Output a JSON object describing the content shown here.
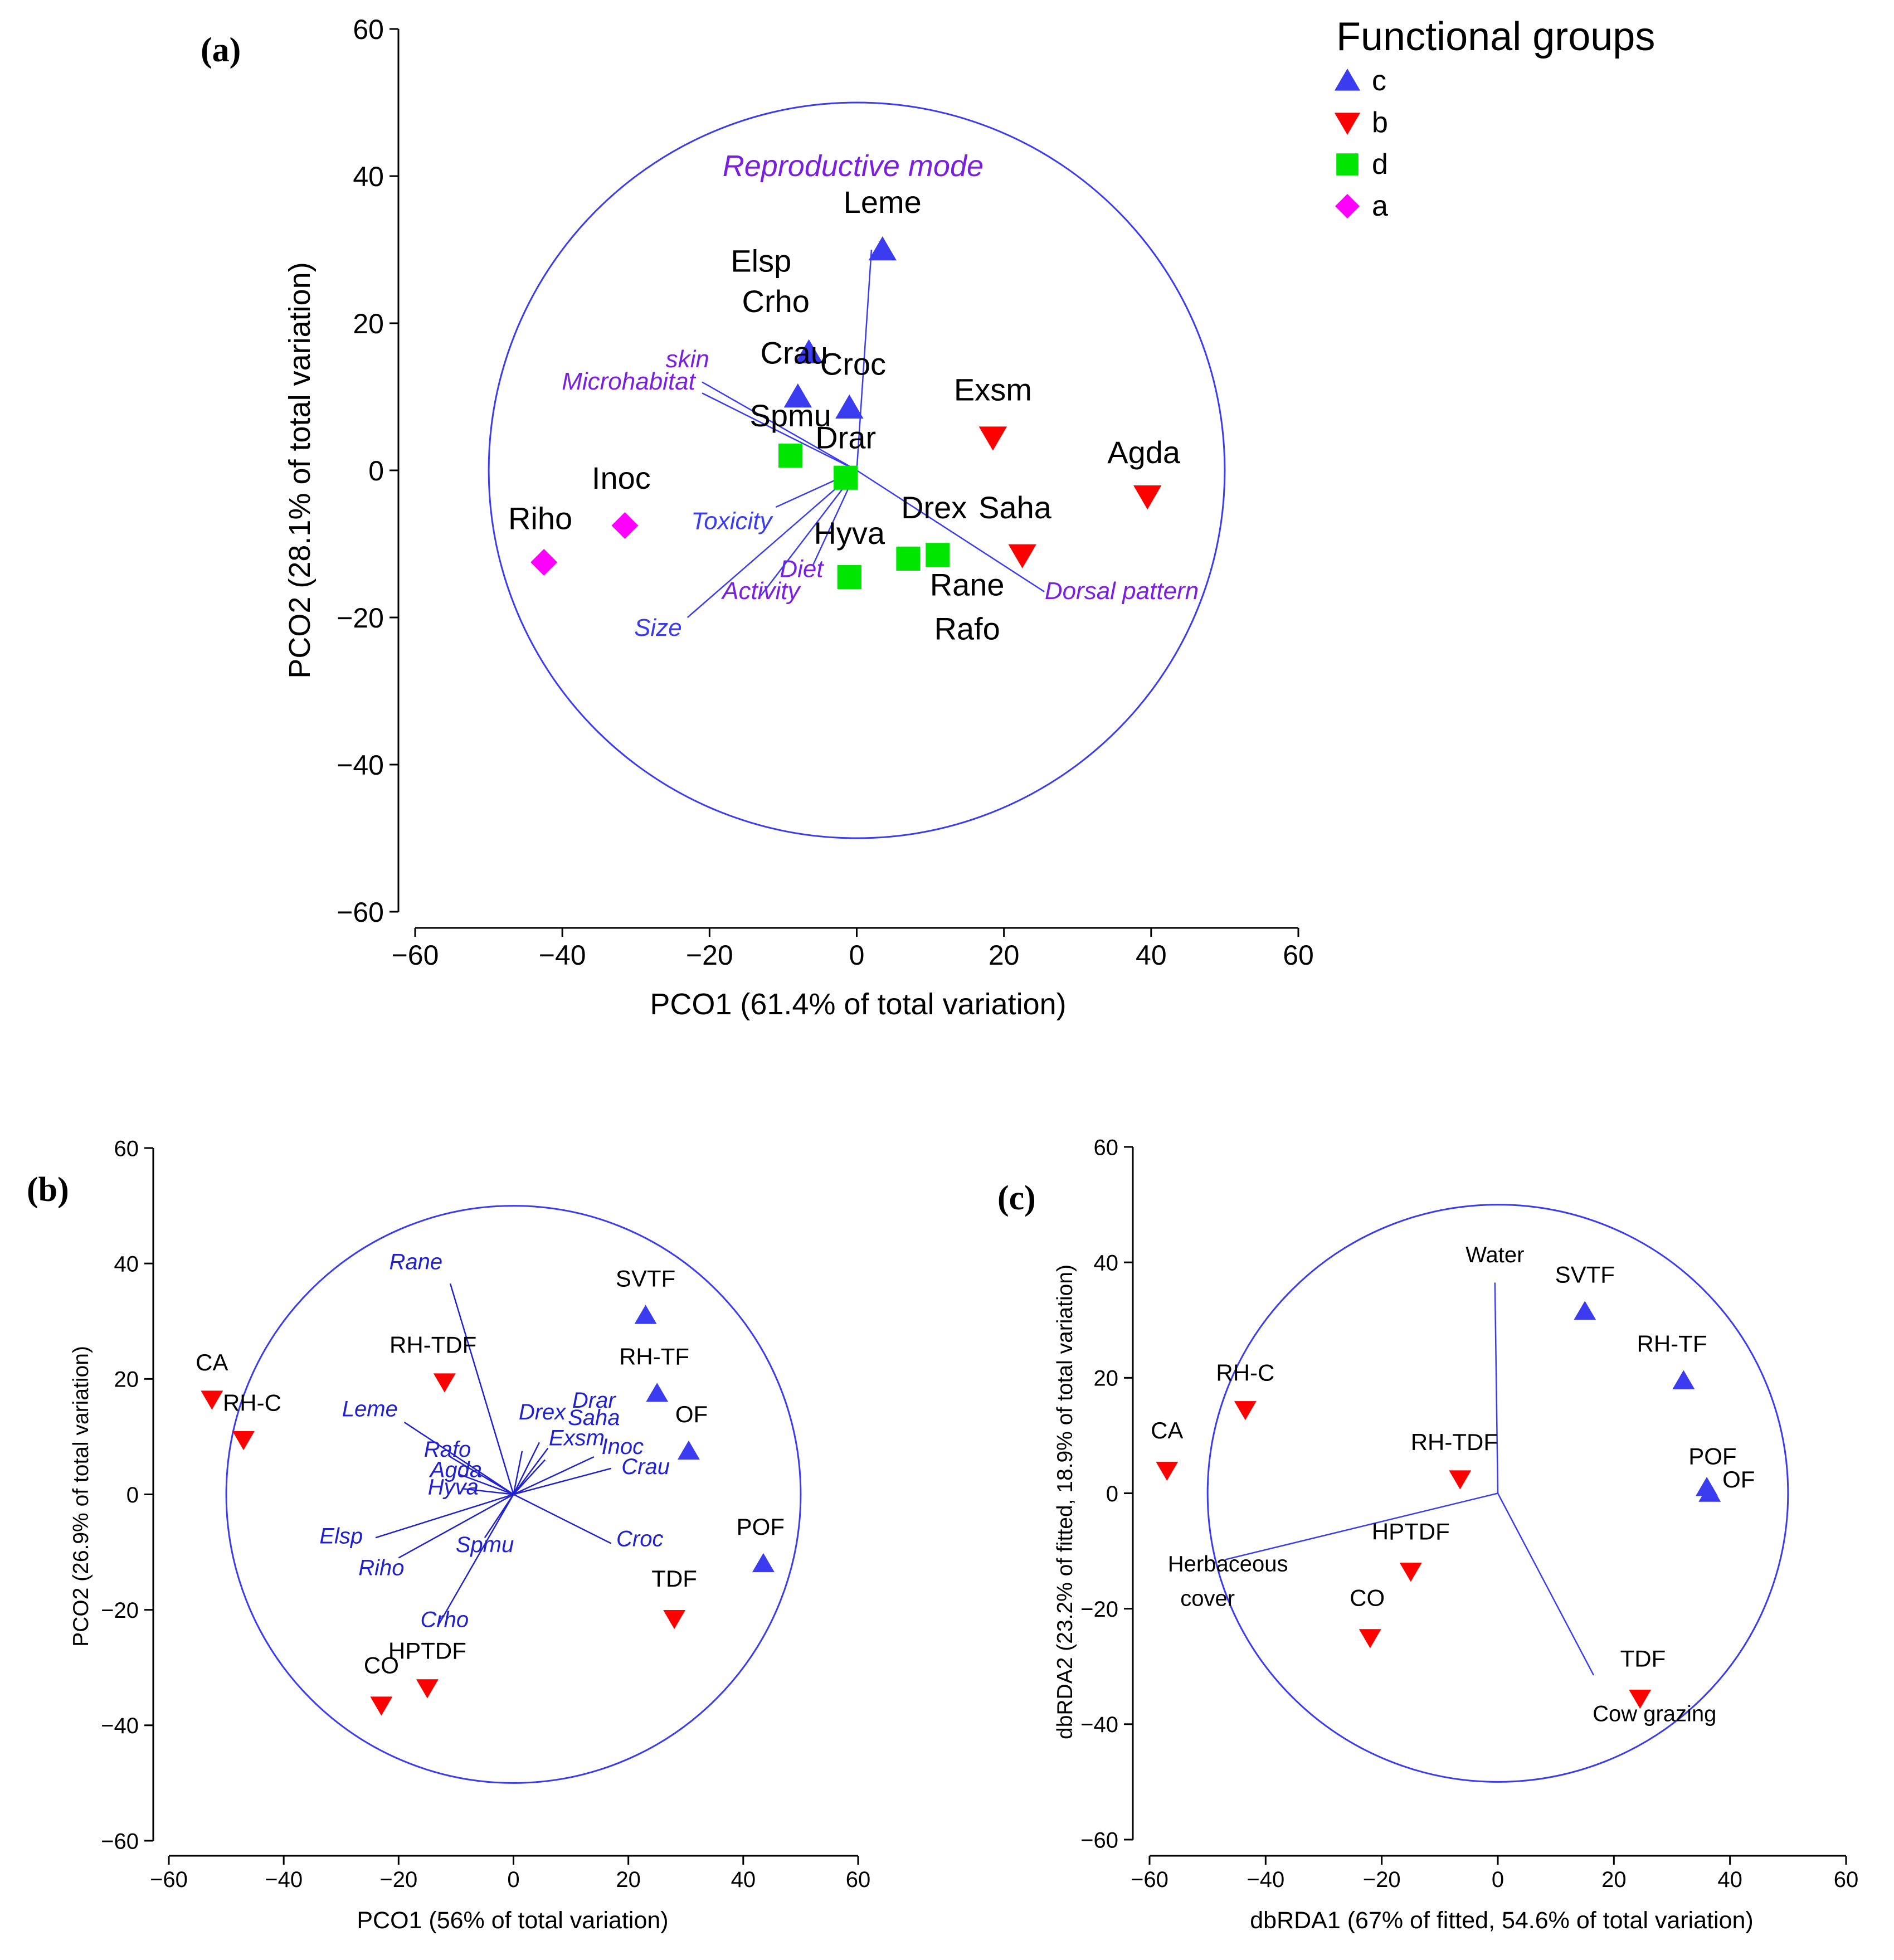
{
  "legend": {
    "title": "Functional groups",
    "items": [
      {
        "label": "c",
        "shape": "triangle-up",
        "color": "#3b3bf0"
      },
      {
        "label": "b",
        "shape": "triangle-down",
        "color": "#ff0000"
      },
      {
        "label": "d",
        "shape": "square",
        "color": "#00e600"
      },
      {
        "label": "a",
        "shape": "diamond",
        "color": "#ff00ff"
      }
    ]
  },
  "chart_data": [
    {
      "panel": "(a)",
      "type": "scatter",
      "xlabel": "PCO1 (61.4% of total variation)",
      "ylabel": "PCO2 (28.1% of total variation)",
      "xlim": [
        -60,
        60
      ],
      "ylim": [
        -60,
        60
      ],
      "xticks": [
        -60,
        -40,
        -20,
        0,
        20,
        40,
        60
      ],
      "yticks": [
        -60,
        -40,
        -20,
        0,
        20,
        40,
        60
      ],
      "tick_labels_x": [
        "−60",
        "−40",
        "−20",
        "0",
        "20",
        "40",
        "60"
      ],
      "tick_labels_y": [
        "−60",
        "−40",
        "−20",
        "0",
        "20",
        "40",
        "60"
      ],
      "circle_radius": 50,
      "points": [
        {
          "label": "Leme",
          "x": 3.5,
          "y": 30,
          "group": "c"
        },
        {
          "label": "Crau",
          "x": -8,
          "y": 10,
          "group": "c"
        },
        {
          "label": "Croc",
          "x": -1,
          "y": 8.5,
          "group": "c"
        },
        {
          "label": "Elsp",
          "x": -6.5,
          "y": 16,
          "group": "c"
        },
        {
          "label": "Exsm",
          "x": 18.5,
          "y": 4.5,
          "group": "b"
        },
        {
          "label": "Agda",
          "x": 39.5,
          "y": -3.5,
          "group": "b"
        },
        {
          "label": "Saha",
          "x": 22.5,
          "y": -11.5,
          "group": "b"
        },
        {
          "label": "Spmu",
          "x": -9,
          "y": 2,
          "group": "d"
        },
        {
          "label": "Drar",
          "x": -1.5,
          "y": -1,
          "group": "d"
        },
        {
          "label": "Hyva",
          "x": -1,
          "y": -14.5,
          "group": "d"
        },
        {
          "label": "Rane",
          "x": 7,
          "y": -12,
          "group": "d"
        },
        {
          "label": "Drex",
          "x": 11,
          "y": -11.5,
          "group": "d"
        },
        {
          "label": "Inoc",
          "x": -31.5,
          "y": -7.5,
          "group": "a"
        },
        {
          "label": "Riho",
          "x": -42.5,
          "y": -12.5,
          "group": "a"
        }
      ],
      "point_labels": [
        {
          "text": "Leme",
          "x": 3.5,
          "y": 35
        },
        {
          "text": "Elsp",
          "x": -13,
          "y": 27
        },
        {
          "text": "Crho",
          "x": -11,
          "y": 21.5
        },
        {
          "text": "Crau",
          "x": -8.5,
          "y": 14.5
        },
        {
          "text": "Croc",
          "x": -0.5,
          "y": 13
        },
        {
          "text": "Exsm",
          "x": 18.5,
          "y": 9.5
        },
        {
          "text": "Spmu",
          "x": -9,
          "y": 6
        },
        {
          "text": "Drar",
          "x": -1.5,
          "y": 3
        },
        {
          "text": "Agda",
          "x": 39,
          "y": 1
        },
        {
          "text": "Inoc",
          "x": -32,
          "y": -2.5
        },
        {
          "text": "Riho",
          "x": -43,
          "y": -8
        },
        {
          "text": "Drex",
          "x": 10.5,
          "y": -6.5
        },
        {
          "text": "Saha",
          "x": 21.5,
          "y": -6.5
        },
        {
          "text": "Hyva",
          "x": -1,
          "y": -10
        },
        {
          "text": "Rane",
          "x": 15,
          "y": -17
        },
        {
          "text": "Rafo",
          "x": 15,
          "y": -23
        }
      ],
      "vectors": [
        {
          "label": "Reproductive mode",
          "x": 2,
          "y": 30,
          "lx": -0.5,
          "ly": 40,
          "color": "#7a1fe0"
        },
        {
          "label": "skin",
          "x": -21,
          "y": 12,
          "lx": -23,
          "ly": 14,
          "color": "#7a1fe0"
        },
        {
          "label": "Microhabitat",
          "x": -21,
          "y": 10.5,
          "lx": -31,
          "ly": 11,
          "color": "#7a1fe0"
        },
        {
          "label": "Toxicity",
          "x": -11,
          "y": -5,
          "lx": -17,
          "ly": -8,
          "color": "#3b3bf0"
        },
        {
          "label": "Diet",
          "x": -6,
          "y": -13,
          "lx": -7.5,
          "ly": -14.5,
          "color": "#7a1fe0"
        },
        {
          "label": "Activity",
          "x": -13,
          "y": -17,
          "lx": -13,
          "ly": -17.5,
          "color": "#7a1fe0"
        },
        {
          "label": "Size",
          "x": -23,
          "y": -20,
          "lx": -27,
          "ly": -22.5,
          "color": "#3b3bf0"
        },
        {
          "label": "Dorsal pattern",
          "x": 25.5,
          "y": -16.5,
          "lx": 36,
          "ly": -17.5,
          "color": "#7a1fe0"
        }
      ]
    },
    {
      "panel": "(b)",
      "type": "scatter",
      "xlabel": "PCO1 (56% of total variation)",
      "ylabel": "PCO2 (26.9% of total variation)",
      "xlim": [
        -60,
        60
      ],
      "ylim": [
        -60,
        60
      ],
      "xticks": [
        -60,
        -40,
        -20,
        0,
        20,
        40,
        60
      ],
      "yticks": [
        -60,
        -40,
        -20,
        0,
        20,
        40,
        60
      ],
      "tick_labels_x": [
        "−60",
        "−40",
        "−20",
        "0",
        "20",
        "40",
        "60"
      ],
      "tick_labels_y": [
        "−60",
        "−40",
        "−20",
        "0",
        "20",
        "40",
        "60"
      ],
      "circle_radius": 50,
      "points": [
        {
          "label": "SVTF",
          "x": 23,
          "y": 31,
          "group": "c"
        },
        {
          "label": "RH-TF",
          "x": 25,
          "y": 17.5,
          "group": "c"
        },
        {
          "label": "OF",
          "x": 30.5,
          "y": 7.5,
          "group": "c"
        },
        {
          "label": "POF",
          "x": 43.5,
          "y": -12,
          "group": "c"
        },
        {
          "label": "CA",
          "x": -52.5,
          "y": 16.5,
          "group": "b"
        },
        {
          "label": "RH-C",
          "x": -47,
          "y": 9.5,
          "group": "b"
        },
        {
          "label": "RH-TDF",
          "x": -12,
          "y": 19.5,
          "group": "b"
        },
        {
          "label": "TDF",
          "x": 28,
          "y": -21.5,
          "group": "b"
        },
        {
          "label": "CO",
          "x": -23,
          "y": -36.5,
          "group": "b"
        },
        {
          "label": "HPTDF",
          "x": -15,
          "y": -33.5,
          "group": "b"
        }
      ],
      "point_labels": [
        {
          "text": "SVTF",
          "x": 23,
          "y": 36
        },
        {
          "text": "RH-TF",
          "x": 24.5,
          "y": 22.5
        },
        {
          "text": "OF",
          "x": 31,
          "y": 12.5
        },
        {
          "text": "POF",
          "x": 43,
          "y": -7
        },
        {
          "text": "CA",
          "x": -52.5,
          "y": 21.5
        },
        {
          "text": "RH-C",
          "x": -45.5,
          "y": 14.5
        },
        {
          "text": "RH-TDF",
          "x": -14,
          "y": 24.5
        },
        {
          "text": "TDF",
          "x": 28,
          "y": -16
        },
        {
          "text": "CO",
          "x": -23,
          "y": -31
        },
        {
          "text": "HPTDF",
          "x": -15,
          "y": -28.5
        }
      ],
      "vectors": [
        {
          "label": "Rane",
          "x": -11,
          "y": 36.5,
          "lx": -17,
          "ly": 39,
          "color": "#2020d0"
        },
        {
          "label": "Leme",
          "x": -19,
          "y": 12.5,
          "lx": -25,
          "ly": 13.5,
          "color": "#2020d0"
        },
        {
          "label": "Rafo",
          "x": -11,
          "y": 6.5,
          "lx": -11.5,
          "ly": 6.5,
          "color": "#2020d0"
        },
        {
          "label": "Agda",
          "x": -9.5,
          "y": 3.5,
          "lx": -10,
          "ly": 3,
          "color": "#2020d0"
        },
        {
          "label": "Hyva",
          "x": -9,
          "y": 1,
          "lx": -10.5,
          "ly": 0,
          "color": "#2020d0"
        },
        {
          "label": "Elsp",
          "x": -24,
          "y": -7.5,
          "lx": -30,
          "ly": -8.5,
          "color": "#2020d0"
        },
        {
          "label": "Riho",
          "x": -20,
          "y": -11,
          "lx": -23,
          "ly": -14,
          "color": "#2020d0"
        },
        {
          "label": "Spmu",
          "x": -5,
          "y": -7.5,
          "lx": -5,
          "ly": -10,
          "color": "#2020d0"
        },
        {
          "label": "Crho",
          "x": -13,
          "y": -22.5,
          "lx": -12,
          "ly": -23,
          "color": "#2020d0"
        },
        {
          "label": "Drex",
          "x": 1.5,
          "y": 7.5,
          "lx": 5,
          "ly": 13,
          "color": "#2020d0"
        },
        {
          "label": "Drar",
          "x": 4.5,
          "y": 9,
          "lx": 14,
          "ly": 15,
          "color": "#2020d0"
        },
        {
          "label": "Saha",
          "x": 6,
          "y": 8,
          "lx": 14,
          "ly": 12,
          "color": "#2020d0"
        },
        {
          "label": "Exsm",
          "x": 5.5,
          "y": 6,
          "lx": 11,
          "ly": 8.5,
          "color": "#2020d0"
        },
        {
          "label": "Inoc",
          "x": 14,
          "y": 6.5,
          "lx": 19,
          "ly": 7,
          "color": "#2020d0"
        },
        {
          "label": "Crau",
          "x": 17,
          "y": 4.5,
          "lx": 23,
          "ly": 3.5,
          "color": "#2020d0"
        },
        {
          "label": "Croc",
          "x": 17,
          "y": -8.5,
          "lx": 22,
          "ly": -9,
          "color": "#2020d0"
        }
      ]
    },
    {
      "panel": "(c)",
      "type": "scatter",
      "xlabel": "dbRDA1 (67% of fitted, 54.6% of total variation)",
      "ylabel": "dbRDA2 (23.2% of fitted, 18.9% of total variation)",
      "xlim": [
        -60,
        60
      ],
      "ylim": [
        -60,
        60
      ],
      "xticks": [
        -60,
        -40,
        -20,
        0,
        20,
        40,
        60
      ],
      "yticks": [
        -60,
        -40,
        -20,
        0,
        20,
        40,
        60
      ],
      "tick_labels_x": [
        "−60",
        "−40",
        "−20",
        "0",
        "20",
        "40",
        "60"
      ],
      "tick_labels_y": [
        "−60",
        "−40",
        "−20",
        "0",
        "20",
        "40",
        "60"
      ],
      "circle_radius": 50,
      "points": [
        {
          "label": "SVTF",
          "x": 15,
          "y": 31.5,
          "group": "c"
        },
        {
          "label": "RH-TF",
          "x": 32,
          "y": 19.5,
          "group": "c"
        },
        {
          "label": "POF",
          "x": 36,
          "y": 1,
          "group": "c"
        },
        {
          "label": "OF",
          "x": 36.5,
          "y": 0,
          "group": "c"
        },
        {
          "label": "RH-C",
          "x": -43.5,
          "y": 14.5,
          "group": "b"
        },
        {
          "label": "CA",
          "x": -57,
          "y": 4,
          "group": "b"
        },
        {
          "label": "RH-TDF",
          "x": -6.5,
          "y": 2.5,
          "group": "b"
        },
        {
          "label": "HPTDF",
          "x": -15,
          "y": -13.5,
          "group": "b"
        },
        {
          "label": "CO",
          "x": -22,
          "y": -25,
          "group": "b"
        },
        {
          "label": "TDF",
          "x": 24.5,
          "y": -35.5,
          "group": "b"
        }
      ],
      "point_labels": [
        {
          "text": "SVTF",
          "x": 15,
          "y": 36.5
        },
        {
          "text": "RH-TF",
          "x": 30,
          "y": 24.5
        },
        {
          "text": "POF",
          "x": 37,
          "y": 5
        },
        {
          "text": "OF",
          "x": 41.5,
          "y": 1
        },
        {
          "text": "RH-C",
          "x": -43.5,
          "y": 19.5
        },
        {
          "text": "CA",
          "x": -57,
          "y": 9.5
        },
        {
          "text": "RH-TDF",
          "x": -7.5,
          "y": 7.5
        },
        {
          "text": "HPTDF",
          "x": -15,
          "y": -8
        },
        {
          "text": "CO",
          "x": -22.5,
          "y": -19.5
        },
        {
          "text": "TDF",
          "x": 25,
          "y": -30
        }
      ],
      "vectors": [
        {
          "label": "Water",
          "x": -0.5,
          "y": 36.5,
          "lx": -0.5,
          "ly": 40,
          "color": "#000000"
        },
        {
          "label": "Herbaceous",
          "x": -47,
          "y": -11.5,
          "lx": -46.5,
          "ly": -13.5,
          "color": "#000000"
        },
        {
          "label": "cover",
          "x": -47,
          "y": -11.5,
          "lx": -50,
          "ly": -19.5,
          "color": "#000000"
        },
        {
          "label": "Cow grazing",
          "x": 16.5,
          "y": -31.5,
          "lx": 27,
          "ly": -39.5,
          "color": "#000000"
        }
      ]
    }
  ],
  "colors": {
    "axis": "#000000",
    "circle": "#3b3bf0",
    "vector_line_a": "#3b3bf0",
    "vector_line_b": "#2020d0",
    "vector_line_c": "#3b3bf0",
    "group_c": "#3b3bf0",
    "group_b": "#ff0000",
    "group_d": "#00e600",
    "group_a": "#ff00ff"
  }
}
